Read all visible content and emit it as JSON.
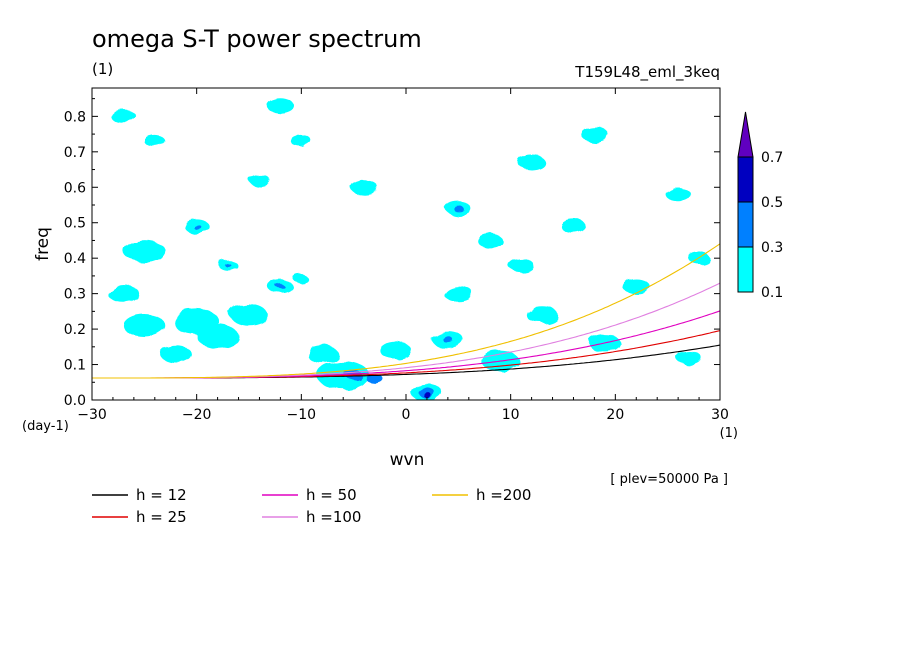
{
  "chart_data": {
    "type": "contour",
    "title": "omega S-T power spectrum",
    "subtitle_left": "(1)",
    "subtitle_right": "T159L48_eml_3keq",
    "xlabel": "wvn",
    "xunits": "(1)",
    "ylabel": "freq",
    "yunits": "(day-1)",
    "annotation": "[ plev=50000 Pa ]",
    "xlim": [
      -30,
      30
    ],
    "ylim": [
      0,
      0.88
    ],
    "xticks": [
      -30,
      -20,
      -10,
      0,
      10,
      20,
      30
    ],
    "xtick_labels": [
      "−30",
      "−20",
      "−10",
      "0",
      "10",
      "20",
      "30"
    ],
    "yticks": [
      0.0,
      0.1,
      0.2,
      0.3,
      0.4,
      0.5,
      0.6,
      0.7,
      0.8
    ],
    "ytick_labels": [
      "0.0",
      "0.1",
      "0.2",
      "0.3",
      "0.4",
      "0.5",
      "0.6",
      "0.7",
      "0.8"
    ],
    "colorbar": {
      "levels": [
        0.1,
        0.3,
        0.5,
        0.7
      ],
      "level_labels": [
        "0.1",
        "0.3",
        "0.5",
        "0.7"
      ],
      "colors": [
        "#00ffff",
        "#0080ff",
        "#0000c0",
        "#6000c0"
      ]
    },
    "dispersion_curves": [
      {
        "label": "h = 12",
        "h": 12,
        "color": "#000000"
      },
      {
        "label": "h = 25",
        "h": 25,
        "color": "#e00000"
      },
      {
        "label": "h = 50",
        "h": 50,
        "color": "#e000c0"
      },
      {
        "label": "h =100",
        "h": 100,
        "color": "#e080e0"
      },
      {
        "label": "h =200",
        "h": 200,
        "color": "#f0c000"
      }
    ],
    "contour_blobs": [
      {
        "x": -27,
        "y": 0.8,
        "r": 1.2,
        "level": 0.1
      },
      {
        "x": -24,
        "y": 0.73,
        "r": 1.0,
        "level": 0.1
      },
      {
        "x": -25,
        "y": 0.42,
        "r": 2.0,
        "level": 0.1
      },
      {
        "x": -27,
        "y": 0.3,
        "r": 1.5,
        "level": 0.1
      },
      {
        "x": -25,
        "y": 0.21,
        "r": 2.0,
        "level": 0.1
      },
      {
        "x": -22,
        "y": 0.13,
        "r": 1.5,
        "level": 0.1
      },
      {
        "x": -20,
        "y": 0.22,
        "r": 2.2,
        "level": 0.1
      },
      {
        "x": -18,
        "y": 0.18,
        "r": 2.0,
        "level": 0.1
      },
      {
        "x": -15,
        "y": 0.24,
        "r": 1.8,
        "level": 0.1
      },
      {
        "x": -20,
        "y": 0.49,
        "r": 1.2,
        "level": 0.1
      },
      {
        "x": -20,
        "y": 0.49,
        "r": 0.4,
        "level": 0.3
      },
      {
        "x": -17,
        "y": 0.38,
        "r": 0.9,
        "level": 0.1
      },
      {
        "x": -17,
        "y": 0.38,
        "r": 0.3,
        "level": 0.3
      },
      {
        "x": -12,
        "y": 0.32,
        "r": 1.2,
        "level": 0.1
      },
      {
        "x": -12,
        "y": 0.32,
        "r": 0.4,
        "level": 0.3
      },
      {
        "x": -10,
        "y": 0.34,
        "r": 0.7,
        "level": 0.1
      },
      {
        "x": -14,
        "y": 0.62,
        "r": 1.0,
        "level": 0.1
      },
      {
        "x": -10,
        "y": 0.73,
        "r": 1.0,
        "level": 0.1
      },
      {
        "x": -8,
        "y": 0.13,
        "r": 1.5,
        "level": 0.1
      },
      {
        "x": -6,
        "y": 0.07,
        "r": 2.5,
        "level": 0.1
      },
      {
        "x": -5,
        "y": 0.07,
        "r": 0.8,
        "level": 0.3
      },
      {
        "x": -3,
        "y": 0.06,
        "r": 0.8,
        "level": 0.3
      },
      {
        "x": -12,
        "y": 0.83,
        "r": 1.3,
        "level": 0.1
      },
      {
        "x": -4,
        "y": 0.6,
        "r": 1.3,
        "level": 0.1
      },
      {
        "x": -1,
        "y": 0.14,
        "r": 1.5,
        "level": 0.1
      },
      {
        "x": 2,
        "y": 0.02,
        "r": 1.5,
        "level": 0.1
      },
      {
        "x": 2,
        "y": 0.02,
        "r": 0.8,
        "level": 0.3
      },
      {
        "x": 2,
        "y": 0.015,
        "r": 0.4,
        "level": 0.5
      },
      {
        "x": 4,
        "y": 0.17,
        "r": 1.5,
        "level": 0.1
      },
      {
        "x": 4,
        "y": 0.17,
        "r": 0.5,
        "level": 0.3
      },
      {
        "x": 5,
        "y": 0.54,
        "r": 1.2,
        "level": 0.1
      },
      {
        "x": 5,
        "y": 0.54,
        "r": 0.5,
        "level": 0.3
      },
      {
        "x": 5,
        "y": 0.3,
        "r": 1.4,
        "level": 0.1
      },
      {
        "x": 8,
        "y": 0.45,
        "r": 1.2,
        "level": 0.1
      },
      {
        "x": 9,
        "y": 0.11,
        "r": 1.8,
        "level": 0.1
      },
      {
        "x": 11,
        "y": 0.38,
        "r": 1.2,
        "level": 0.1
      },
      {
        "x": 12,
        "y": 0.67,
        "r": 1.3,
        "level": 0.1
      },
      {
        "x": 13,
        "y": 0.24,
        "r": 1.5,
        "level": 0.1
      },
      {
        "x": 16,
        "y": 0.49,
        "r": 1.2,
        "level": 0.1
      },
      {
        "x": 18,
        "y": 0.75,
        "r": 1.3,
        "level": 0.1
      },
      {
        "x": 19,
        "y": 0.16,
        "r": 1.5,
        "level": 0.1
      },
      {
        "x": 22,
        "y": 0.32,
        "r": 1.3,
        "level": 0.1
      },
      {
        "x": 26,
        "y": 0.58,
        "r": 1.2,
        "level": 0.1
      },
      {
        "x": 27,
        "y": 0.12,
        "r": 1.2,
        "level": 0.1
      },
      {
        "x": 28,
        "y": 0.4,
        "r": 1.0,
        "level": 0.1
      }
    ]
  }
}
